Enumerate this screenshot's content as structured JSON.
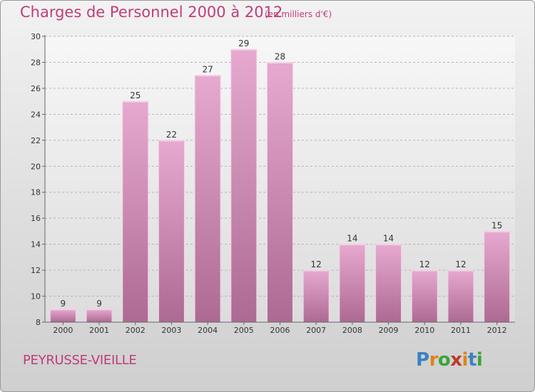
{
  "header": {
    "title": "Charges de Personnel 2000 à 2012",
    "subtitle": "(en milliers d'€)"
  },
  "footer": {
    "commune": "PEYRUSSE-VIEILLE",
    "logo_text": "Proxiti"
  },
  "colors": {
    "bar_top": "#e7a9d0",
    "bar_bottom": "#ad6a93",
    "title": "#c03c7c",
    "logo": [
      "#3b82c4",
      "#e0841a",
      "#3aa63a",
      "#c0392b",
      "#e0841a",
      "#3b82c4",
      "#3aa63a"
    ]
  },
  "chart_data": {
    "type": "bar",
    "title": "Charges de Personnel 2000 à 2012",
    "subtitle": "(en milliers d'€)",
    "categories": [
      "2000",
      "2001",
      "2002",
      "2003",
      "2004",
      "2005",
      "2006",
      "2007",
      "2008",
      "2009",
      "2010",
      "2011",
      "2012"
    ],
    "values": [
      9,
      9,
      25,
      22,
      27,
      29,
      28,
      12,
      14,
      14,
      12,
      12,
      15
    ],
    "ylim": [
      8,
      30
    ],
    "yticks": [
      8,
      10,
      12,
      14,
      16,
      18,
      20,
      22,
      24,
      26,
      28,
      30
    ],
    "grid": "dashed horizontal",
    "legend": "none"
  }
}
